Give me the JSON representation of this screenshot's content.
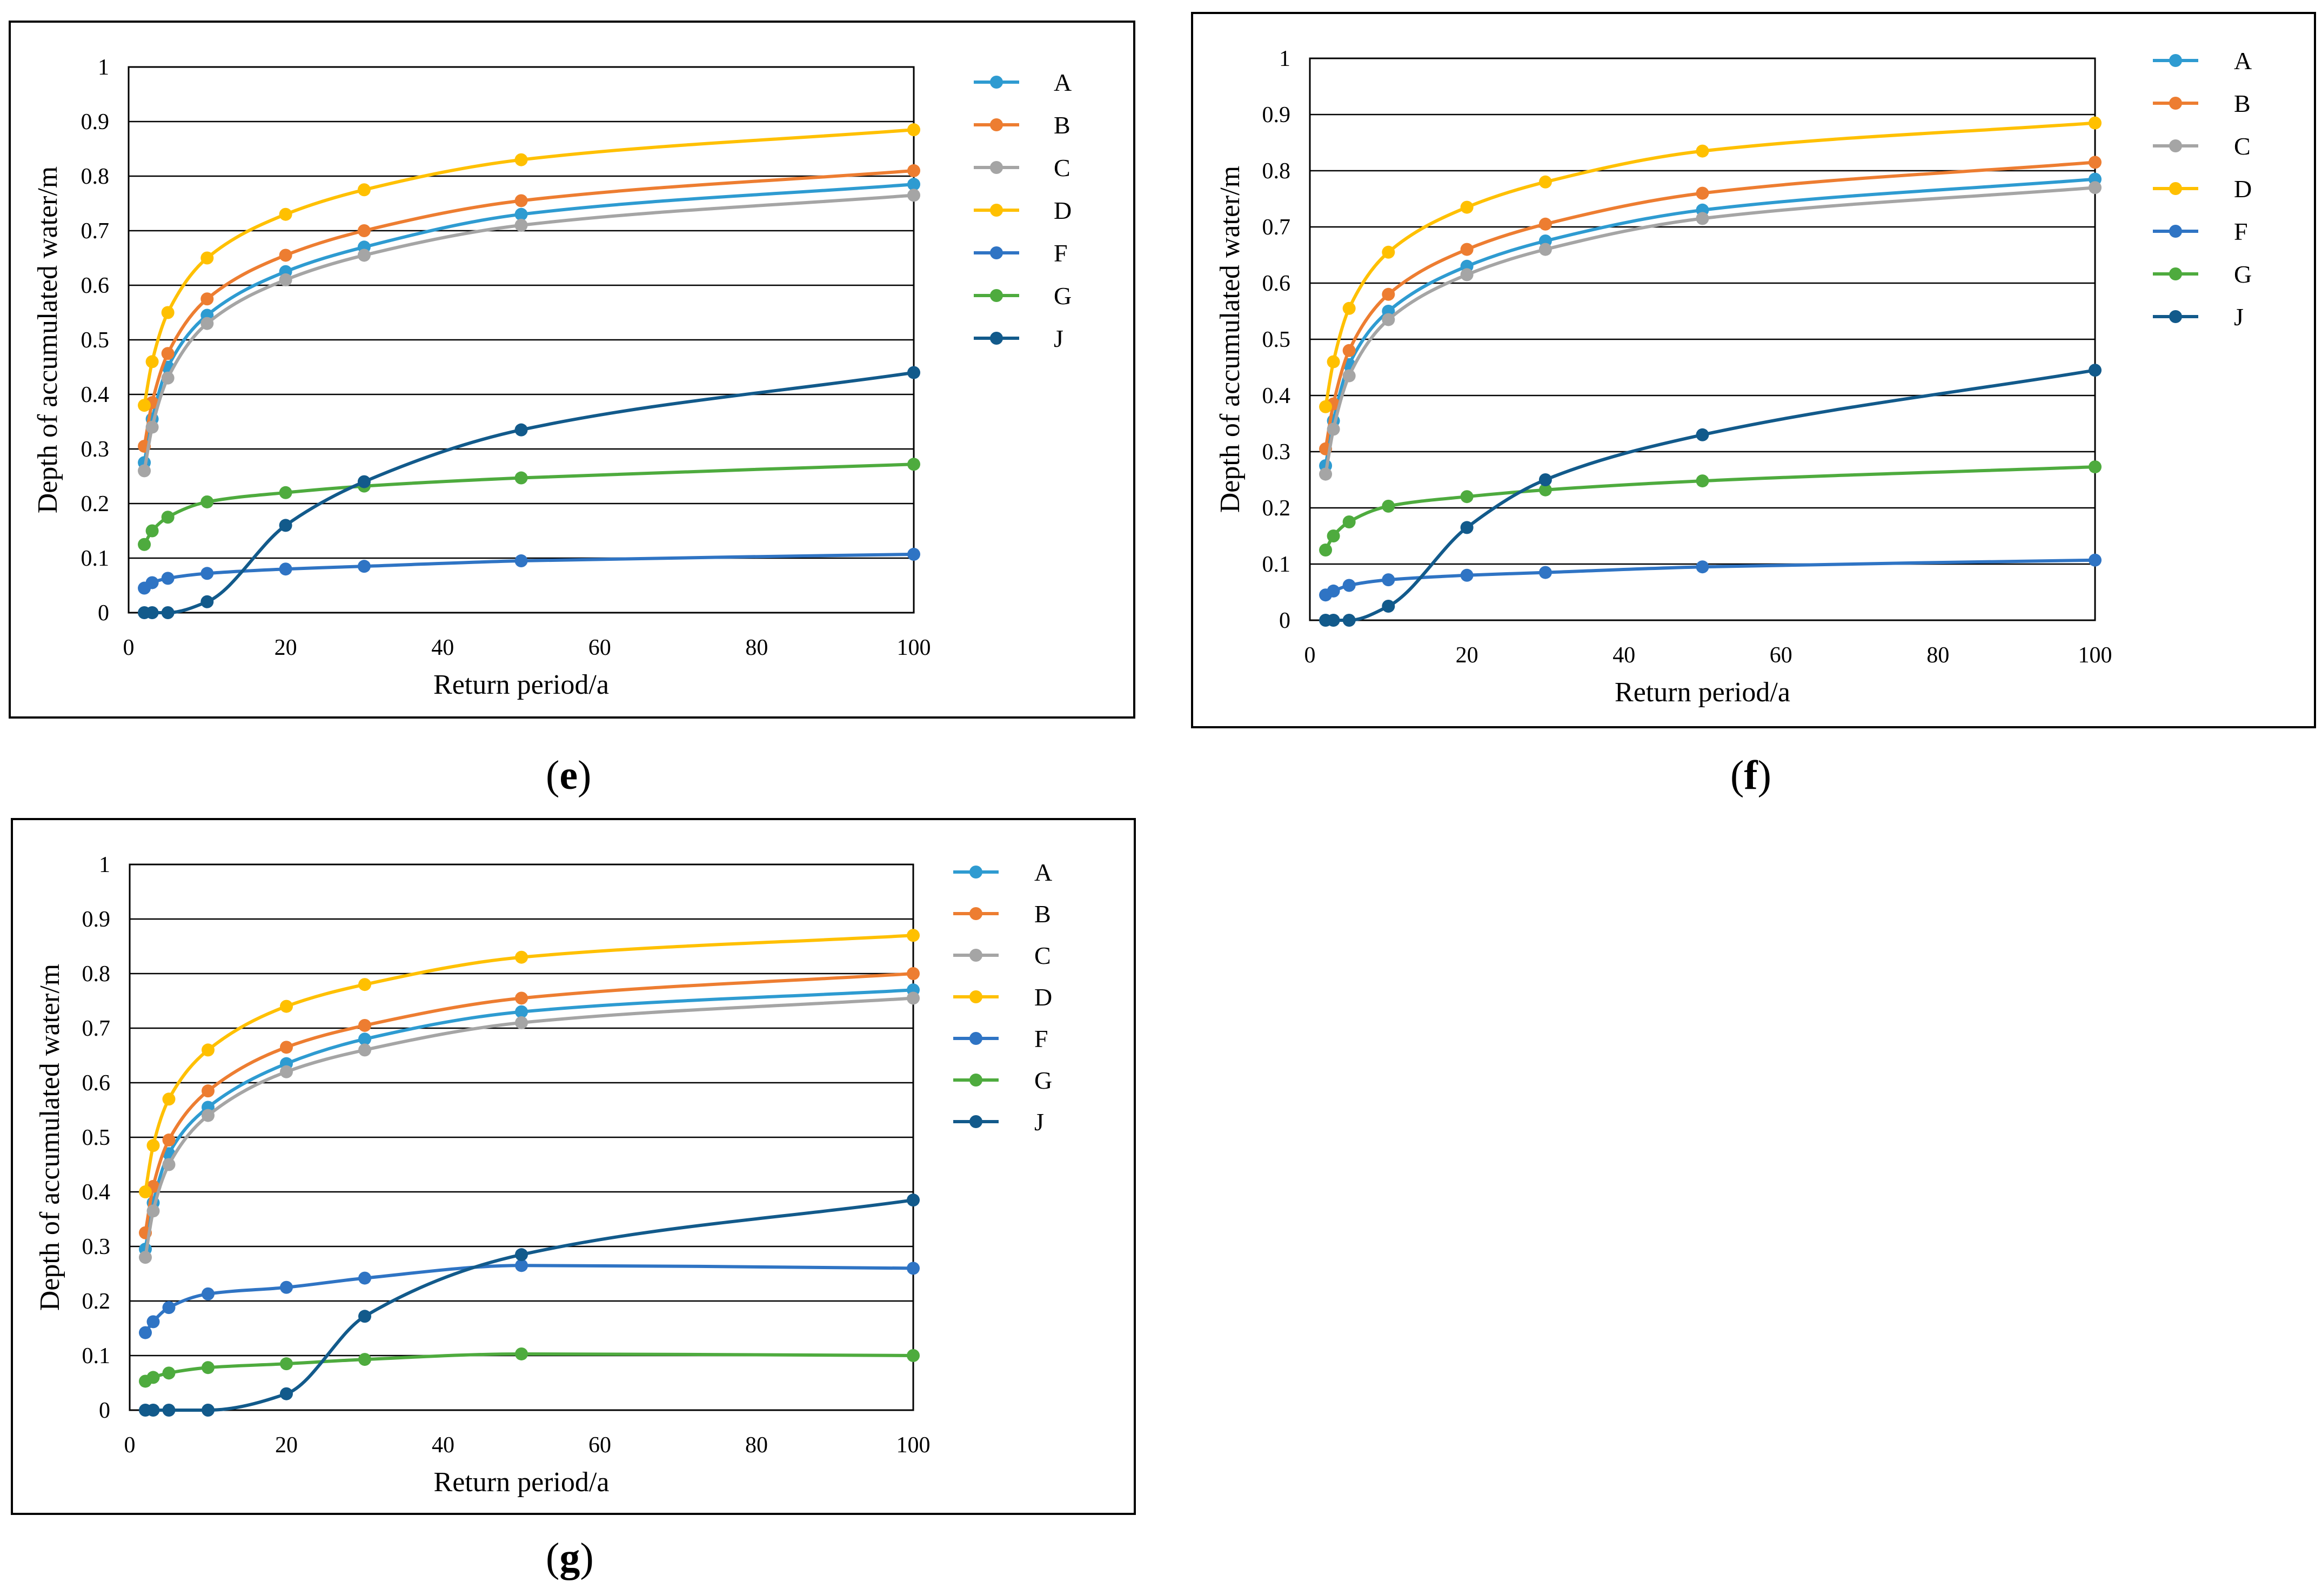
{
  "chart_data": [
    {
      "type": "line",
      "panel": "e",
      "xlabel": "Return period/a",
      "ylabel": "Depth of accumulated water/m",
      "xlim": [
        0,
        100
      ],
      "ylim": [
        0,
        1
      ],
      "xticks": [
        "0",
        "20",
        "40",
        "60",
        "80",
        "100"
      ],
      "yticks": [
        "0",
        "0.1",
        "0.2",
        "0.3",
        "0.4",
        "0.5",
        "0.6",
        "0.7",
        "0.8",
        "0.9",
        "1"
      ],
      "grid": "horizontal",
      "legend": "right",
      "x": [
        2,
        3,
        5,
        10,
        20,
        30,
        50,
        100
      ],
      "series": [
        {
          "name": "A",
          "color": "#2E9BD1",
          "values": [
            0.275,
            0.355,
            0.45,
            0.545,
            0.625,
            0.67,
            0.73,
            0.785
          ]
        },
        {
          "name": "B",
          "color": "#ED7D31",
          "values": [
            0.305,
            0.385,
            0.475,
            0.575,
            0.655,
            0.7,
            0.755,
            0.81
          ]
        },
        {
          "name": "C",
          "color": "#A5A5A5",
          "values": [
            0.26,
            0.34,
            0.43,
            0.53,
            0.61,
            0.655,
            0.71,
            0.765
          ]
        },
        {
          "name": "D",
          "color": "#FFC000",
          "values": [
            0.38,
            0.46,
            0.55,
            0.65,
            0.73,
            0.775,
            0.83,
            0.885
          ]
        },
        {
          "name": "F",
          "color": "#2F74C4",
          "values": [
            0.045,
            0.055,
            0.063,
            0.072,
            0.08,
            0.085,
            0.095,
            0.107
          ]
        },
        {
          "name": "G",
          "color": "#4EAB3E",
          "values": [
            0.125,
            0.15,
            0.175,
            0.203,
            0.22,
            0.232,
            0.247,
            0.272
          ]
        },
        {
          "name": "J",
          "color": "#125A8B",
          "values": [
            0.0,
            0.0,
            0.0,
            0.02,
            0.16,
            0.24,
            0.335,
            0.44
          ]
        }
      ]
    },
    {
      "type": "line",
      "panel": "f",
      "xlabel": "Return period/a",
      "ylabel": "Depth of accumulated water/m",
      "xlim": [
        0,
        100
      ],
      "ylim": [
        0,
        1
      ],
      "xticks": [
        "0",
        "20",
        "40",
        "60",
        "80",
        "100"
      ],
      "yticks": [
        "0",
        "0.1",
        "0.2",
        "0.3",
        "0.4",
        "0.5",
        "0.6",
        "0.7",
        "0.8",
        "0.9",
        "1"
      ],
      "grid": "horizontal",
      "legend": "right",
      "x": [
        2,
        3,
        5,
        10,
        20,
        30,
        50,
        100
      ],
      "series": [
        {
          "name": "A",
          "color": "#2E9BD1",
          "values": [
            0.275,
            0.355,
            0.455,
            0.55,
            0.63,
            0.675,
            0.73,
            0.785
          ]
        },
        {
          "name": "B",
          "color": "#ED7D31",
          "values": [
            0.305,
            0.385,
            0.48,
            0.58,
            0.66,
            0.705,
            0.76,
            0.815
          ]
        },
        {
          "name": "C",
          "color": "#A5A5A5",
          "values": [
            0.26,
            0.34,
            0.435,
            0.535,
            0.615,
            0.66,
            0.715,
            0.77
          ]
        },
        {
          "name": "D",
          "color": "#FFC000",
          "values": [
            0.38,
            0.46,
            0.555,
            0.655,
            0.735,
            0.78,
            0.835,
            0.885
          ]
        },
        {
          "name": "F",
          "color": "#2F74C4",
          "values": [
            0.045,
            0.052,
            0.062,
            0.072,
            0.08,
            0.085,
            0.095,
            0.107
          ]
        },
        {
          "name": "G",
          "color": "#4EAB3E",
          "values": [
            0.125,
            0.15,
            0.175,
            0.203,
            0.22,
            0.232,
            0.248,
            0.273
          ]
        },
        {
          "name": "J",
          "color": "#125A8B",
          "values": [
            0.0,
            0.0,
            0.0,
            0.025,
            0.165,
            0.25,
            0.33,
            0.445
          ]
        }
      ]
    },
    {
      "type": "line",
      "panel": "g",
      "xlabel": "Return period/a",
      "ylabel": "Depth of accumulated water/m",
      "xlim": [
        0,
        100
      ],
      "ylim": [
        0,
        1
      ],
      "xticks": [
        "0",
        "20",
        "40",
        "60",
        "80",
        "100"
      ],
      "yticks": [
        "0",
        "0.1",
        "0.2",
        "0.3",
        "0.4",
        "0.5",
        "0.6",
        "0.7",
        "0.8",
        "0.9",
        "1"
      ],
      "grid": "horizontal",
      "legend": "right",
      "x": [
        2,
        3,
        5,
        10,
        20,
        30,
        50,
        100
      ],
      "series": [
        {
          "name": "A",
          "color": "#2E9BD1",
          "values": [
            0.295,
            0.38,
            0.47,
            0.555,
            0.635,
            0.68,
            0.73,
            0.77
          ]
        },
        {
          "name": "B",
          "color": "#ED7D31",
          "values": [
            0.325,
            0.41,
            0.495,
            0.585,
            0.665,
            0.705,
            0.755,
            0.8
          ]
        },
        {
          "name": "C",
          "color": "#A5A5A5",
          "values": [
            0.28,
            0.365,
            0.45,
            0.54,
            0.62,
            0.66,
            0.71,
            0.755
          ]
        },
        {
          "name": "D",
          "color": "#FFC000",
          "values": [
            0.4,
            0.485,
            0.57,
            0.66,
            0.74,
            0.78,
            0.83,
            0.87
          ]
        },
        {
          "name": "F",
          "color": "#2F74C4",
          "values": [
            0.142,
            0.162,
            0.188,
            0.213,
            0.225,
            0.242,
            0.265,
            0.26
          ]
        },
        {
          "name": "G",
          "color": "#4EAB3E",
          "values": [
            0.053,
            0.06,
            0.068,
            0.078,
            0.085,
            0.093,
            0.103,
            0.1
          ]
        },
        {
          "name": "J",
          "color": "#125A8B",
          "values": [
            0.0,
            0.0,
            0.0,
            0.0,
            0.03,
            0.172,
            0.285,
            0.385
          ]
        }
      ]
    }
  ],
  "captions": {
    "e": {
      "open": "(",
      "letter": "e",
      "close": ")"
    },
    "f": {
      "open": "(",
      "letter": "f",
      "close": ")"
    },
    "g": {
      "open": "(",
      "letter": "g",
      "close": ")"
    }
  }
}
